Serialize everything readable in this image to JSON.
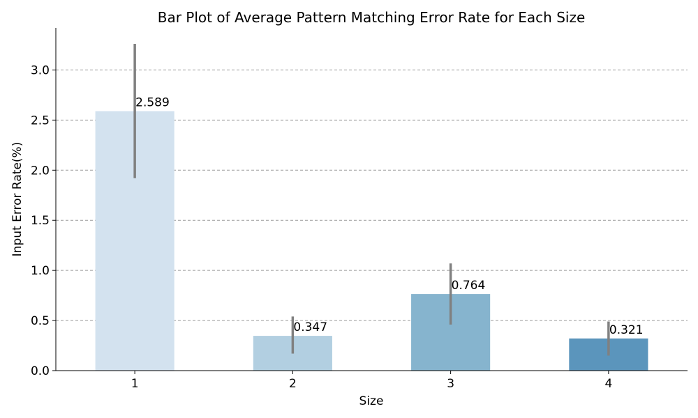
{
  "chart_data": {
    "type": "bar",
    "title": "Bar Plot of Average Pattern Matching Error Rate for Each Size",
    "xlabel": "Size",
    "ylabel": "Input Error Rate(%)",
    "categories": [
      "1",
      "2",
      "3",
      "4"
    ],
    "values": [
      2.589,
      0.347,
      0.764,
      0.321
    ],
    "data_labels": [
      "2.589",
      "0.347",
      "0.764",
      "0.321"
    ],
    "error_low": [
      1.92,
      0.17,
      0.46,
      0.15
    ],
    "error_high": [
      3.26,
      0.54,
      1.07,
      0.49
    ],
    "colors": [
      "#d3e2ef",
      "#b2cfe1",
      "#86b4ce",
      "#5b95bc"
    ],
    "error_color": "#808080",
    "ylim": [
      0,
      3.42
    ],
    "yticks": [
      0.0,
      0.5,
      1.0,
      1.5,
      2.0,
      2.5,
      3.0
    ],
    "ytick_labels": [
      "0.0",
      "0.5",
      "1.0",
      "1.5",
      "2.0",
      "2.5",
      "3.0"
    ],
    "grid": "horizontal-dashed",
    "legend": "none"
  }
}
